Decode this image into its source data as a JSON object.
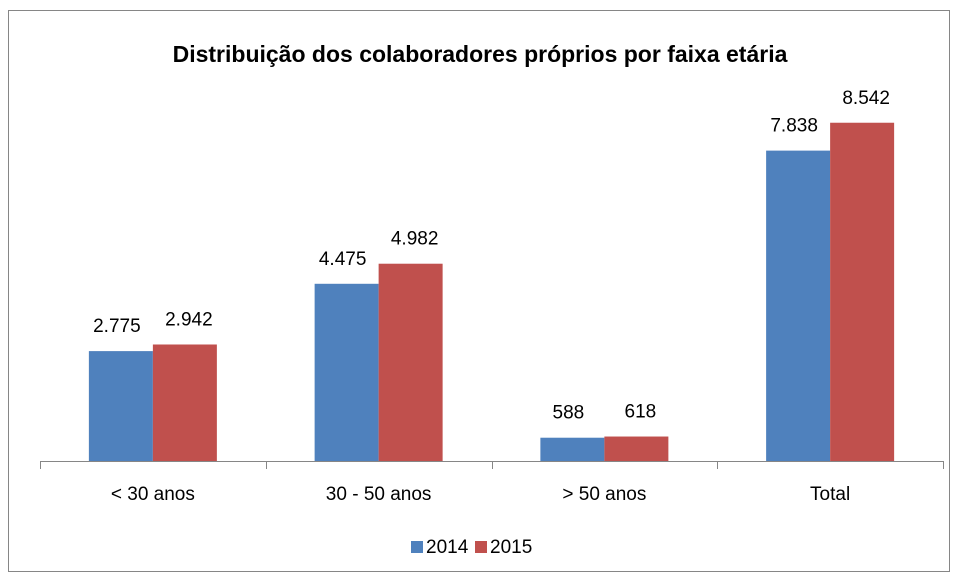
{
  "chart_data": {
    "type": "bar",
    "title": "Distribuição dos colaboradores próprios por faixa etária",
    "categories": [
      "< 30 anos",
      "30 - 50 anos",
      "> 50 anos",
      "Total"
    ],
    "series": [
      {
        "name": "2014",
        "color": "#4f81bd",
        "values": [
          2775,
          4475,
          588,
          7838
        ],
        "value_labels": [
          "2.775",
          "4.475",
          "588",
          "7.838"
        ]
      },
      {
        "name": "2015",
        "color": "#c0504d",
        "values": [
          2942,
          4982,
          618,
          8542
        ],
        "value_labels": [
          "2.942",
          "4.982",
          "618",
          "8.542"
        ]
      }
    ],
    "ylim": [
      0,
      10000
    ],
    "legend": "bottom"
  }
}
